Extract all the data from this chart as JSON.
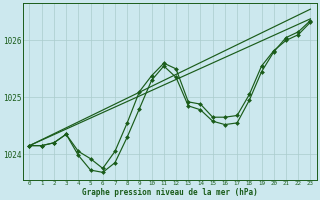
{
  "xlabel": "Graphe pression niveau de la mer (hPa)",
  "bg_color": "#cce8ee",
  "grid_color": "#aacccc",
  "line_color": "#1a5c1a",
  "marker_color": "#1a5c1a",
  "x_ticks": [
    0,
    1,
    2,
    3,
    4,
    5,
    6,
    7,
    8,
    9,
    10,
    11,
    12,
    13,
    14,
    15,
    16,
    17,
    18,
    19,
    20,
    21,
    22,
    23
  ],
  "y_ticks": [
    1024,
    1025,
    1026
  ],
  "ylim": [
    1023.55,
    1026.65
  ],
  "xlim": [
    -0.5,
    23.5
  ],
  "series1_x": [
    0,
    1,
    2,
    3,
    4,
    5,
    6,
    7,
    8,
    9,
    10,
    11,
    12,
    13,
    14,
    15,
    16,
    17,
    18,
    19,
    20,
    21,
    22,
    23
  ],
  "series1_y": [
    1024.15,
    1024.15,
    1024.2,
    1024.35,
    1023.98,
    1023.72,
    1023.68,
    1023.85,
    1024.3,
    1024.8,
    1025.3,
    1025.55,
    1025.35,
    1024.85,
    1024.78,
    1024.58,
    1024.52,
    1024.55,
    1024.95,
    1025.45,
    1025.8,
    1026.05,
    1026.15,
    1026.35
  ],
  "series2_x": [
    0,
    1,
    2,
    3,
    4,
    5,
    6,
    7,
    8,
    9,
    10,
    11,
    12,
    13,
    14,
    15,
    16,
    17,
    18,
    19,
    20,
    21,
    22,
    23
  ],
  "series2_y": [
    1024.15,
    1024.15,
    1024.2,
    1024.35,
    1024.05,
    1023.92,
    1023.75,
    1024.05,
    1024.55,
    1025.1,
    1025.38,
    1025.6,
    1025.5,
    1024.92,
    1024.88,
    1024.65,
    1024.65,
    1024.68,
    1025.05,
    1025.55,
    1025.82,
    1026.0,
    1026.1,
    1026.32
  ],
  "line1_x": [
    0,
    23
  ],
  "line1_y": [
    1024.15,
    1026.38
  ],
  "line2_x": [
    0,
    23
  ],
  "line2_y": [
    1024.15,
    1026.55
  ]
}
